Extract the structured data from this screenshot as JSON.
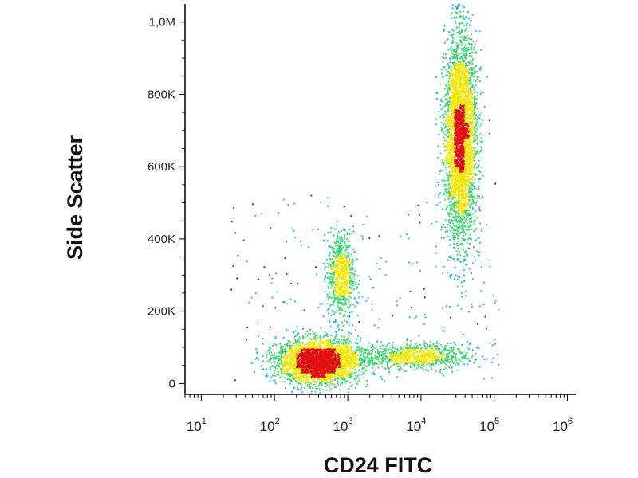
{
  "chart_data": {
    "type": "scatter",
    "style": "flow-cytometry density dot plot (blue → green → yellow → red)",
    "xlabel": "CD24 FITC",
    "ylabel": "Side Scatter",
    "x_scale": "log",
    "xlim": [
      6,
      1300000
    ],
    "ylim": [
      -30000,
      1050000
    ],
    "x_ticks": [
      {
        "value": 10,
        "base": "10",
        "exp": "1"
      },
      {
        "value": 100,
        "base": "10",
        "exp": "2"
      },
      {
        "value": 1000,
        "base": "10",
        "exp": "3"
      },
      {
        "value": 10000,
        "base": "10",
        "exp": "4"
      },
      {
        "value": 100000,
        "base": "10",
        "exp": "5"
      },
      {
        "value": 1000000,
        "base": "10",
        "exp": "6"
      }
    ],
    "y_ticks": [
      {
        "value": 0,
        "label": "0"
      },
      {
        "value": 200000,
        "label": "200K"
      },
      {
        "value": 400000,
        "label": "400K"
      },
      {
        "value": 600000,
        "label": "600K"
      },
      {
        "value": 800000,
        "label": "800K"
      },
      {
        "value": 1000000,
        "label": "1,0M"
      }
    ],
    "populations": [
      {
        "x_center": 400,
        "y_center": 60000,
        "x_spread_log": 0.28,
        "y_spread": 30000,
        "events": 3200
      },
      {
        "x_center": 800,
        "y_center": 300000,
        "x_spread_log": 0.09,
        "y_spread": 60000,
        "events": 800
      },
      {
        "x_center": 35000,
        "y_center": 680000,
        "x_spread_log": 0.11,
        "y_spread": 140000,
        "events": 3800
      },
      {
        "x_center": 8000,
        "y_center": 75000,
        "x_spread_log": 0.38,
        "y_spread": 17000,
        "events": 900
      }
    ],
    "grid": false,
    "legend": "none",
    "colors": {
      "low_density": "#1616c8",
      "mid_low": "#00a8ff",
      "mid": "#2fd66a",
      "mid_high": "#f0e600",
      "high_density": "#e01010",
      "axis": "#000000"
    }
  }
}
